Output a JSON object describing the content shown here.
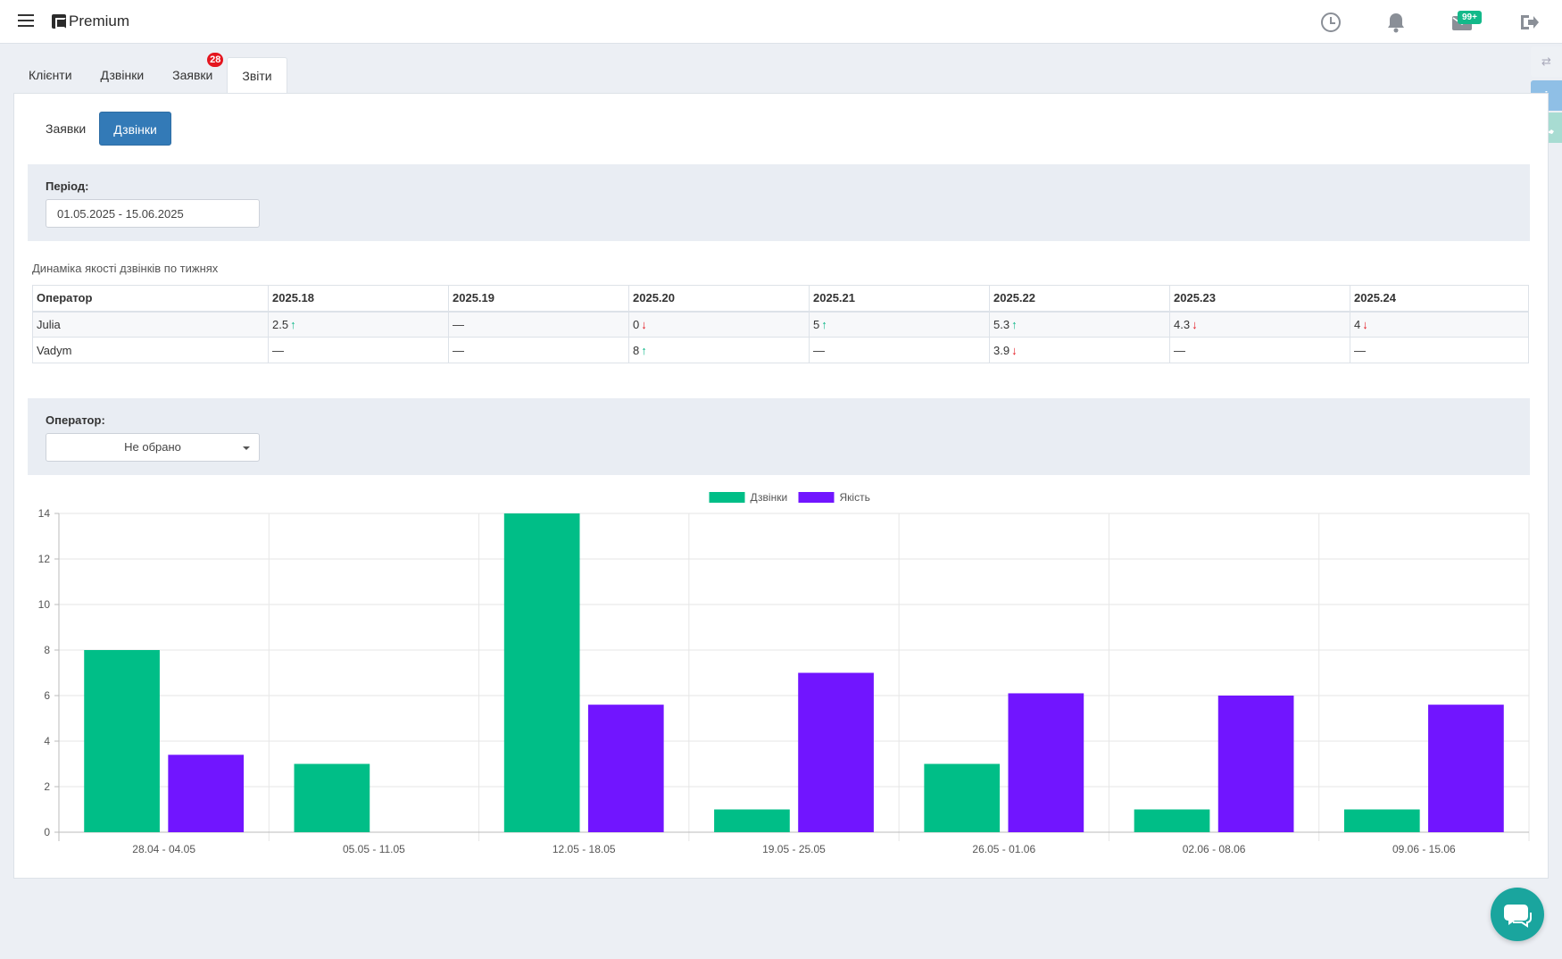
{
  "header": {
    "logo_text": "Premium",
    "mail_badge": "99+",
    "icons": [
      "menu-icon",
      "clock-icon",
      "bell-icon",
      "mail-icon",
      "logout-icon"
    ]
  },
  "tabs": [
    {
      "label": "Клієнти",
      "active": false
    },
    {
      "label": "Дзвінки",
      "active": false
    },
    {
      "label": "Заявки",
      "active": false,
      "badge": "28"
    },
    {
      "label": "Звіти",
      "active": true
    }
  ],
  "subtabs": [
    {
      "label": "Заявки",
      "active": false
    },
    {
      "label": "Дзвінки",
      "active": true
    }
  ],
  "period": {
    "label": "Період:",
    "value": "01.05.2025 - 15.06.2025"
  },
  "quality_table": {
    "title": "Динаміка якості дзвінків по тижнях",
    "columns": [
      "Оператор",
      "2025.18",
      "2025.19",
      "2025.20",
      "2025.21",
      "2025.22",
      "2025.23",
      "2025.24"
    ],
    "rows": [
      {
        "operator": "Julia",
        "cells": [
          {
            "value": "2.5",
            "trend": "up"
          },
          {
            "value": "—",
            "trend": ""
          },
          {
            "value": "0",
            "trend": "down"
          },
          {
            "value": "5",
            "trend": "up"
          },
          {
            "value": "5.3",
            "trend": "up"
          },
          {
            "value": "4.3",
            "trend": "down"
          },
          {
            "value": "4",
            "trend": "down"
          }
        ]
      },
      {
        "operator": "Vadym",
        "cells": [
          {
            "value": "—",
            "trend": ""
          },
          {
            "value": "—",
            "trend": ""
          },
          {
            "value": "8",
            "trend": "up"
          },
          {
            "value": "—",
            "trend": ""
          },
          {
            "value": "3.9",
            "trend": "down"
          },
          {
            "value": "—",
            "trend": ""
          },
          {
            "value": "—",
            "trend": ""
          }
        ]
      }
    ]
  },
  "operator_filter": {
    "label": "Оператор:",
    "selected": "Не обрано"
  },
  "chart_data": {
    "type": "bar",
    "categories": [
      "28.04 - 04.05",
      "05.05 - 11.05",
      "12.05 - 18.05",
      "19.05 - 25.05",
      "26.05 - 01.06",
      "02.06 - 08.06",
      "09.06 - 15.06"
    ],
    "series": [
      {
        "name": "Дзвінки",
        "color": "#00be87",
        "values": [
          8,
          3,
          14,
          1,
          3,
          1,
          1
        ]
      },
      {
        "name": "Якість",
        "color": "#7115ff",
        "values": [
          3.4,
          0,
          5.6,
          7,
          6.1,
          6,
          5.6
        ]
      }
    ],
    "ylim": [
      0,
      14
    ],
    "yticks": [
      0,
      2,
      4,
      6,
      8,
      10,
      12,
      14
    ],
    "legend": "top-center",
    "grid": true
  }
}
